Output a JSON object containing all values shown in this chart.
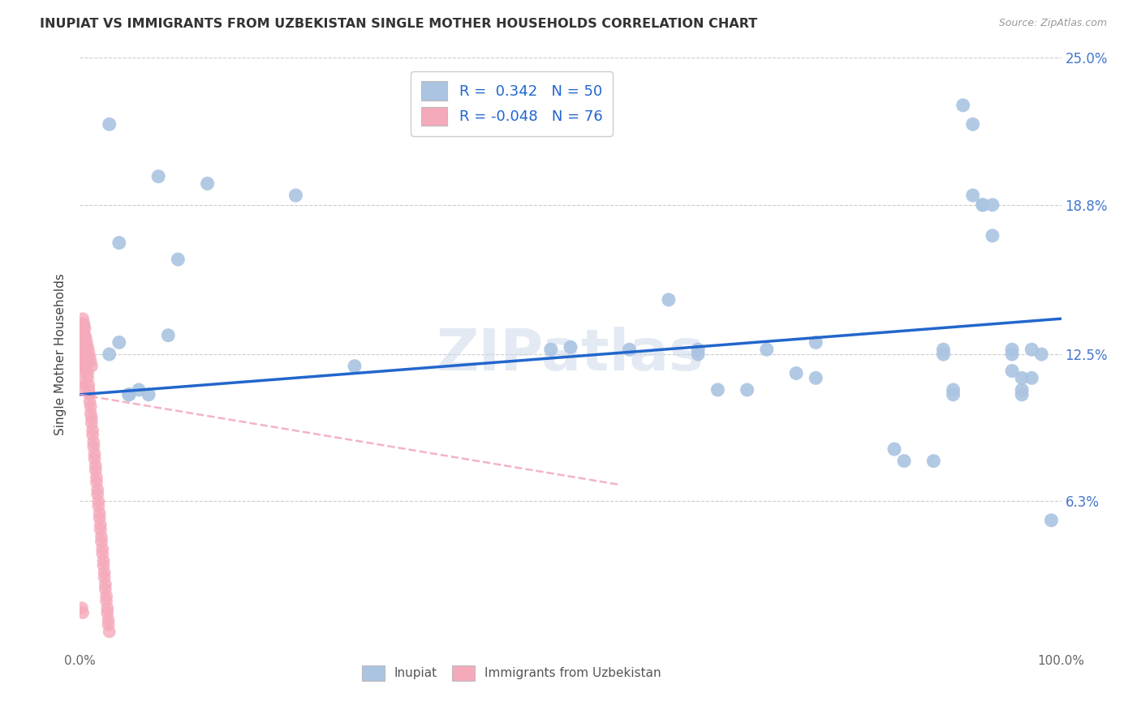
{
  "title": "INUPIAT VS IMMIGRANTS FROM UZBEKISTAN SINGLE MOTHER HOUSEHOLDS CORRELATION CHART",
  "source": "Source: ZipAtlas.com",
  "ylabel": "Single Mother Households",
  "xlim": [
    0.0,
    1.0
  ],
  "ylim": [
    0.0,
    0.25
  ],
  "ytick_values": [
    0.063,
    0.125,
    0.188,
    0.25
  ],
  "ytick_labels": [
    "6.3%",
    "12.5%",
    "18.8%",
    "25.0%"
  ],
  "inupiat_color": "#aac4e2",
  "uzbekistan_color": "#f5aabb",
  "inupiat_line_color": "#2266cc",
  "uzbekistan_line_color": "#f0a0b8",
  "background_color": "#ffffff",
  "grid_color": "#cccccc",
  "inupiat_line_x": [
    0.0,
    1.0
  ],
  "inupiat_line_y": [
    0.108,
    0.14
  ],
  "uzbekistan_line_x": [
    0.0,
    0.55
  ],
  "uzbekistan_line_y": [
    0.108,
    0.07
  ],
  "inupiat_points": [
    [
      0.03,
      0.222
    ],
    [
      0.08,
      0.2
    ],
    [
      0.13,
      0.197
    ],
    [
      0.22,
      0.192
    ],
    [
      0.04,
      0.172
    ],
    [
      0.1,
      0.165
    ],
    [
      0.09,
      0.133
    ],
    [
      0.04,
      0.13
    ],
    [
      0.28,
      0.12
    ],
    [
      0.03,
      0.125
    ],
    [
      0.05,
      0.108
    ],
    [
      0.05,
      0.108
    ],
    [
      0.06,
      0.11
    ],
    [
      0.07,
      0.108
    ],
    [
      0.48,
      0.127
    ],
    [
      0.5,
      0.128
    ],
    [
      0.56,
      0.127
    ],
    [
      0.6,
      0.148
    ],
    [
      0.63,
      0.125
    ],
    [
      0.63,
      0.127
    ],
    [
      0.65,
      0.11
    ],
    [
      0.68,
      0.11
    ],
    [
      0.7,
      0.127
    ],
    [
      0.73,
      0.117
    ],
    [
      0.75,
      0.115
    ],
    [
      0.75,
      0.13
    ],
    [
      0.83,
      0.085
    ],
    [
      0.84,
      0.08
    ],
    [
      0.87,
      0.08
    ],
    [
      0.88,
      0.127
    ],
    [
      0.88,
      0.125
    ],
    [
      0.89,
      0.11
    ],
    [
      0.89,
      0.108
    ],
    [
      0.9,
      0.23
    ],
    [
      0.91,
      0.222
    ],
    [
      0.91,
      0.192
    ],
    [
      0.92,
      0.188
    ],
    [
      0.92,
      0.188
    ],
    [
      0.93,
      0.188
    ],
    [
      0.93,
      0.175
    ],
    [
      0.95,
      0.127
    ],
    [
      0.95,
      0.125
    ],
    [
      0.95,
      0.118
    ],
    [
      0.96,
      0.115
    ],
    [
      0.96,
      0.11
    ],
    [
      0.96,
      0.108
    ],
    [
      0.97,
      0.115
    ],
    [
      0.97,
      0.127
    ],
    [
      0.98,
      0.125
    ],
    [
      0.99,
      0.055
    ]
  ],
  "uzbekistan_points": [
    [
      0.003,
      0.14
    ],
    [
      0.004,
      0.137
    ],
    [
      0.004,
      0.135
    ],
    [
      0.005,
      0.133
    ],
    [
      0.005,
      0.13
    ],
    [
      0.006,
      0.128
    ],
    [
      0.006,
      0.125
    ],
    [
      0.007,
      0.122
    ],
    [
      0.007,
      0.12
    ],
    [
      0.008,
      0.117
    ],
    [
      0.008,
      0.115
    ],
    [
      0.009,
      0.112
    ],
    [
      0.009,
      0.11
    ],
    [
      0.01,
      0.108
    ],
    [
      0.01,
      0.105
    ],
    [
      0.011,
      0.103
    ],
    [
      0.011,
      0.1
    ],
    [
      0.012,
      0.098
    ],
    [
      0.012,
      0.096
    ],
    [
      0.013,
      0.093
    ],
    [
      0.013,
      0.091
    ],
    [
      0.014,
      0.088
    ],
    [
      0.014,
      0.086
    ],
    [
      0.015,
      0.083
    ],
    [
      0.015,
      0.081
    ],
    [
      0.016,
      0.078
    ],
    [
      0.016,
      0.076
    ],
    [
      0.017,
      0.073
    ],
    [
      0.017,
      0.071
    ],
    [
      0.018,
      0.068
    ],
    [
      0.018,
      0.066
    ],
    [
      0.019,
      0.063
    ],
    [
      0.019,
      0.061
    ],
    [
      0.02,
      0.058
    ],
    [
      0.02,
      0.056
    ],
    [
      0.021,
      0.053
    ],
    [
      0.021,
      0.051
    ],
    [
      0.022,
      0.048
    ],
    [
      0.022,
      0.046
    ],
    [
      0.023,
      0.043
    ],
    [
      0.023,
      0.041
    ],
    [
      0.024,
      0.038
    ],
    [
      0.024,
      0.036
    ],
    [
      0.025,
      0.033
    ],
    [
      0.025,
      0.031
    ],
    [
      0.026,
      0.028
    ],
    [
      0.026,
      0.026
    ],
    [
      0.027,
      0.023
    ],
    [
      0.027,
      0.021
    ],
    [
      0.028,
      0.018
    ],
    [
      0.028,
      0.016
    ],
    [
      0.029,
      0.013
    ],
    [
      0.029,
      0.011
    ],
    [
      0.03,
      0.008
    ],
    [
      0.004,
      0.138
    ],
    [
      0.005,
      0.136
    ],
    [
      0.006,
      0.132
    ],
    [
      0.007,
      0.13
    ],
    [
      0.008,
      0.128
    ],
    [
      0.009,
      0.126
    ],
    [
      0.01,
      0.124
    ],
    [
      0.011,
      0.122
    ],
    [
      0.012,
      0.12
    ],
    [
      0.002,
      0.13
    ],
    [
      0.003,
      0.128
    ],
    [
      0.004,
      0.126
    ],
    [
      0.003,
      0.124
    ],
    [
      0.004,
      0.122
    ],
    [
      0.005,
      0.12
    ],
    [
      0.006,
      0.118
    ],
    [
      0.002,
      0.12
    ],
    [
      0.003,
      0.118
    ],
    [
      0.002,
      0.113
    ],
    [
      0.003,
      0.111
    ],
    [
      0.002,
      0.018
    ],
    [
      0.003,
      0.016
    ]
  ]
}
